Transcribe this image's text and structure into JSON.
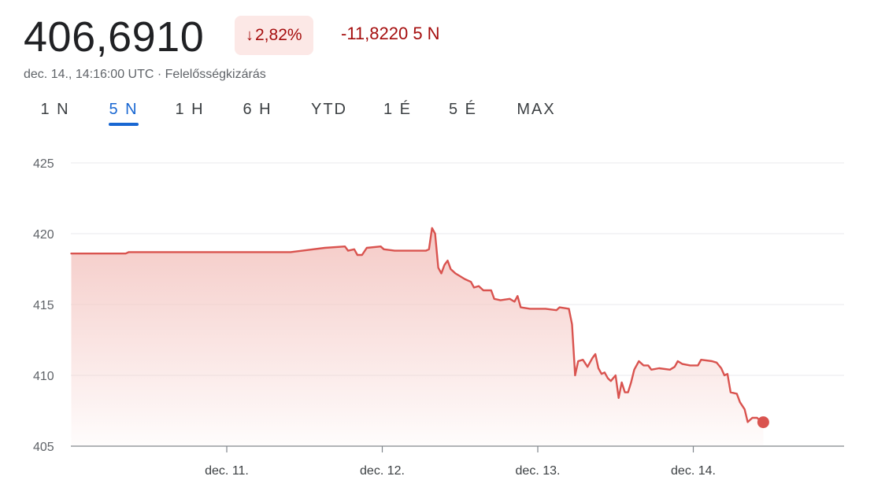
{
  "header": {
    "price": "406,6910",
    "change_arrow": "↓",
    "change_percent": "2,82%",
    "change_value": "-11,8220 5 N",
    "timestamp": "dec. 14., 14:16:00 UTC",
    "separator": " · ",
    "disclaimer": "Felelősségkizárás"
  },
  "tabs": [
    {
      "label": "1 N",
      "active": false
    },
    {
      "label": "5 N",
      "active": true
    },
    {
      "label": "1 H",
      "active": false
    },
    {
      "label": "6 H",
      "active": false
    },
    {
      "label": "YTD",
      "active": false
    },
    {
      "label": "1 É",
      "active": false
    },
    {
      "label": "5 É",
      "active": false
    },
    {
      "label": "MAX",
      "active": false
    }
  ],
  "colors": {
    "line": "#d9534f",
    "fill_top": "#f4c7c3",
    "negative_text": "#a50e0e",
    "badge_bg": "#fce8e6",
    "active_tab": "#1967d2",
    "grid": "#e8eaed",
    "axis": "#5f6368"
  },
  "chart_data": {
    "type": "area",
    "y_ticks": [
      405,
      410,
      415,
      420,
      425
    ],
    "y_tick_labels": [
      "405",
      "410",
      "415",
      "420",
      "425"
    ],
    "ylim": [
      405,
      425
    ],
    "x_ticks": [
      1,
      2,
      3,
      4
    ],
    "x_tick_labels": [
      "dec. 11.",
      "dec. 12.",
      "dec. 13.",
      "dec. 14."
    ],
    "xlim": [
      0,
      4.97
    ],
    "grid": true,
    "last_point_marker": true,
    "series": [
      {
        "points": [
          [
            0.0,
            418.6
          ],
          [
            0.35,
            418.6
          ],
          [
            0.37,
            418.7
          ],
          [
            0.8,
            418.7
          ],
          [
            1.2,
            418.7
          ],
          [
            1.41,
            418.7
          ],
          [
            1.63,
            419.0
          ],
          [
            1.76,
            419.1
          ],
          [
            1.78,
            418.8
          ],
          [
            1.82,
            418.9
          ],
          [
            1.84,
            418.5
          ],
          [
            1.87,
            418.5
          ],
          [
            1.9,
            419.0
          ],
          [
            1.99,
            419.1
          ],
          [
            2.01,
            418.9
          ],
          [
            2.08,
            418.8
          ],
          [
            2.2,
            418.8
          ],
          [
            2.28,
            418.8
          ],
          [
            2.3,
            418.9
          ],
          [
            2.32,
            420.4
          ],
          [
            2.34,
            420.0
          ],
          [
            2.36,
            417.6
          ],
          [
            2.38,
            417.2
          ],
          [
            2.4,
            417.8
          ],
          [
            2.42,
            418.1
          ],
          [
            2.44,
            417.5
          ],
          [
            2.47,
            417.2
          ],
          [
            2.5,
            417.0
          ],
          [
            2.53,
            416.8
          ],
          [
            2.57,
            416.6
          ],
          [
            2.59,
            416.2
          ],
          [
            2.62,
            416.3
          ],
          [
            2.65,
            416.0
          ],
          [
            2.7,
            416.0
          ],
          [
            2.72,
            415.4
          ],
          [
            2.76,
            415.3
          ],
          [
            2.82,
            415.4
          ],
          [
            2.85,
            415.2
          ],
          [
            2.87,
            415.6
          ],
          [
            2.89,
            414.8
          ],
          [
            2.95,
            414.7
          ],
          [
            3.05,
            414.7
          ],
          [
            3.12,
            414.6
          ],
          [
            3.14,
            414.8
          ],
          [
            3.2,
            414.7
          ],
          [
            3.22,
            413.6
          ],
          [
            3.24,
            410.0
          ],
          [
            3.26,
            411.0
          ],
          [
            3.29,
            411.1
          ],
          [
            3.32,
            410.6
          ],
          [
            3.35,
            411.2
          ],
          [
            3.37,
            411.5
          ],
          [
            3.39,
            410.5
          ],
          [
            3.41,
            410.1
          ],
          [
            3.43,
            410.2
          ],
          [
            3.45,
            409.8
          ],
          [
            3.47,
            409.6
          ],
          [
            3.5,
            410.0
          ],
          [
            3.52,
            408.4
          ],
          [
            3.54,
            409.5
          ],
          [
            3.56,
            408.8
          ],
          [
            3.58,
            408.8
          ],
          [
            3.6,
            409.5
          ],
          [
            3.62,
            410.4
          ],
          [
            3.65,
            411.0
          ],
          [
            3.68,
            410.7
          ],
          [
            3.71,
            410.7
          ],
          [
            3.73,
            410.4
          ],
          [
            3.78,
            410.5
          ],
          [
            3.85,
            410.4
          ],
          [
            3.88,
            410.6
          ],
          [
            3.9,
            411.0
          ],
          [
            3.93,
            410.8
          ],
          [
            3.98,
            410.7
          ],
          [
            4.03,
            410.7
          ],
          [
            4.05,
            411.1
          ],
          [
            4.12,
            411.0
          ],
          [
            4.15,
            410.9
          ],
          [
            4.18,
            410.5
          ],
          [
            4.2,
            410.0
          ],
          [
            4.22,
            410.1
          ],
          [
            4.24,
            408.8
          ],
          [
            4.28,
            408.7
          ],
          [
            4.3,
            408.1
          ],
          [
            4.33,
            407.6
          ],
          [
            4.35,
            406.7
          ],
          [
            4.38,
            407.0
          ],
          [
            4.41,
            407.0
          ],
          [
            4.43,
            406.8
          ],
          [
            4.45,
            406.69
          ]
        ]
      }
    ]
  }
}
